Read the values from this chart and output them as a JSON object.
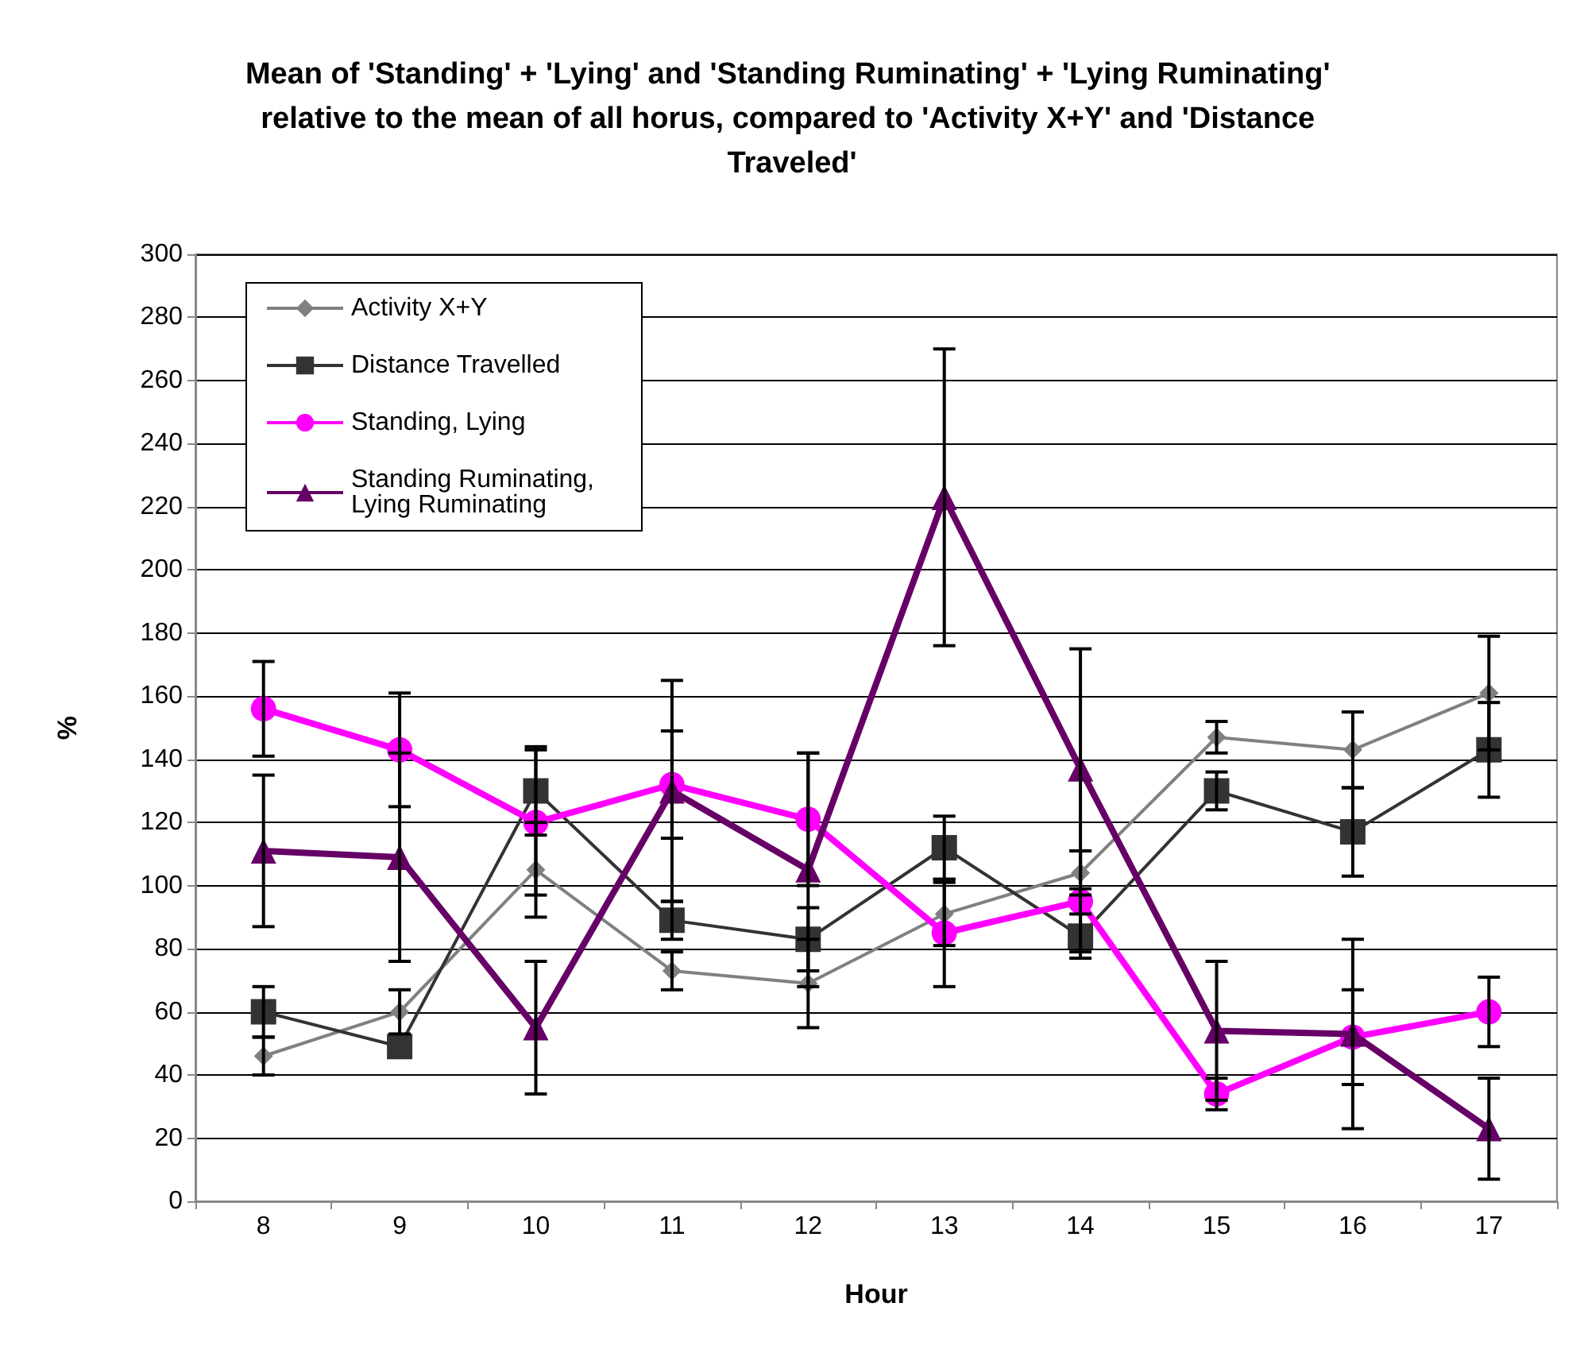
{
  "chart_data": {
    "type": "line",
    "title": "Mean of 'Standing' + 'Lying' and 'Standing Ruminating' + 'Lying Ruminating' relative to the mean of all horus, compared to 'Activity X+Y' and 'Distance Traveled'",
    "xlabel": "Hour",
    "ylabel": "%",
    "categories": [
      "8",
      "9",
      "10",
      "11",
      "12",
      "13",
      "14",
      "15",
      "16",
      "17"
    ],
    "series": [
      {
        "name": "Activity X+Y",
        "color": "#808080",
        "marker": "diamond",
        "values": [
          46,
          60,
          105,
          73,
          69,
          91,
          104,
          147,
          143,
          161
        ],
        "errors": [
          6,
          7,
          15,
          6,
          14,
          10,
          7,
          5,
          12,
          18
        ]
      },
      {
        "name": "Distance Travelled",
        "color": "#333333",
        "marker": "square",
        "values": [
          60,
          49,
          130,
          89,
          83,
          112,
          84,
          130,
          117,
          143
        ],
        "errors": [
          8,
          null,
          14,
          6,
          10,
          10,
          7,
          6,
          14,
          15
        ]
      },
      {
        "name": "Standing, Lying",
        "color": "#ff00ff",
        "marker": "circle",
        "values": [
          156,
          143,
          120,
          132,
          121,
          85,
          95,
          34,
          52,
          60
        ],
        "errors": [
          15,
          18,
          23,
          17,
          21,
          17,
          16,
          5,
          15,
          11
        ]
      },
      {
        "name": "Standing Ruminating,\nLying Ruminating",
        "color": "#660066",
        "marker": "triangle",
        "values": [
          111,
          109,
          55,
          130,
          105,
          223,
          137,
          54,
          53,
          23
        ],
        "errors": [
          24,
          33,
          21,
          35,
          37,
          47,
          38,
          22,
          30,
          16
        ]
      }
    ],
    "ylim": [
      0,
      300
    ],
    "yticks": [
      0,
      20,
      40,
      60,
      80,
      100,
      120,
      140,
      160,
      180,
      200,
      220,
      240,
      260,
      280,
      300
    ],
    "grid": "y",
    "legend": "top left"
  }
}
